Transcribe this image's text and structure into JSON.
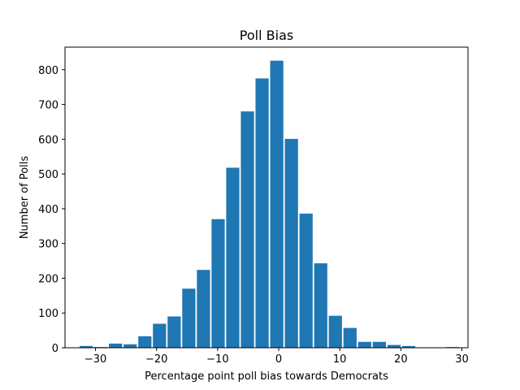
{
  "chart_data": {
    "type": "bar",
    "title": "Poll Bias",
    "xlabel": "Percentage point poll bias towards Democrats",
    "ylabel": "Number of Polls",
    "xlim": [
      -35,
      31
    ],
    "ylim": [
      0,
      865
    ],
    "xticks": [
      -30,
      -20,
      -10,
      0,
      10,
      20,
      30
    ],
    "xtick_labels": [
      "−30",
      "−20",
      "−10",
      "0",
      "10",
      "20",
      "30"
    ],
    "yticks": [
      0,
      100,
      200,
      300,
      400,
      500,
      600,
      700,
      800
    ],
    "grid": false,
    "bar_color": "#1f77b4",
    "bins": [
      {
        "x0": -32.6,
        "x1": -30.2,
        "value": 5
      },
      {
        "x0": -30.2,
        "x1": -27.8,
        "value": 2
      },
      {
        "x0": -27.8,
        "x1": -25.4,
        "value": 12
      },
      {
        "x0": -25.4,
        "x1": -23.0,
        "value": 10
      },
      {
        "x0": -23.0,
        "x1": -20.6,
        "value": 33
      },
      {
        "x0": -20.6,
        "x1": -18.2,
        "value": 69
      },
      {
        "x0": -18.2,
        "x1": -15.8,
        "value": 90
      },
      {
        "x0": -15.8,
        "x1": -13.4,
        "value": 170
      },
      {
        "x0": -13.4,
        "x1": -11.0,
        "value": 224
      },
      {
        "x0": -11.0,
        "x1": -8.6,
        "value": 370
      },
      {
        "x0": -8.6,
        "x1": -6.2,
        "value": 518
      },
      {
        "x0": -6.2,
        "x1": -3.8,
        "value": 680
      },
      {
        "x0": -3.8,
        "x1": -1.4,
        "value": 775
      },
      {
        "x0": -1.4,
        "x1": 1.0,
        "value": 826
      },
      {
        "x0": 1.0,
        "x1": 3.4,
        "value": 601
      },
      {
        "x0": 3.4,
        "x1": 5.8,
        "value": 386
      },
      {
        "x0": 5.8,
        "x1": 8.2,
        "value": 243
      },
      {
        "x0": 8.2,
        "x1": 10.6,
        "value": 92
      },
      {
        "x0": 10.6,
        "x1": 13.0,
        "value": 57
      },
      {
        "x0": 13.0,
        "x1": 15.4,
        "value": 17
      },
      {
        "x0": 15.4,
        "x1": 17.8,
        "value": 17
      },
      {
        "x0": 17.8,
        "x1": 20.2,
        "value": 8
      },
      {
        "x0": 20.2,
        "x1": 22.6,
        "value": 5
      },
      {
        "x0": 22.6,
        "x1": 25.0,
        "value": 0
      },
      {
        "x0": 25.0,
        "x1": 27.4,
        "value": 1
      },
      {
        "x0": 27.4,
        "x1": 29.8,
        "value": 2
      }
    ]
  }
}
